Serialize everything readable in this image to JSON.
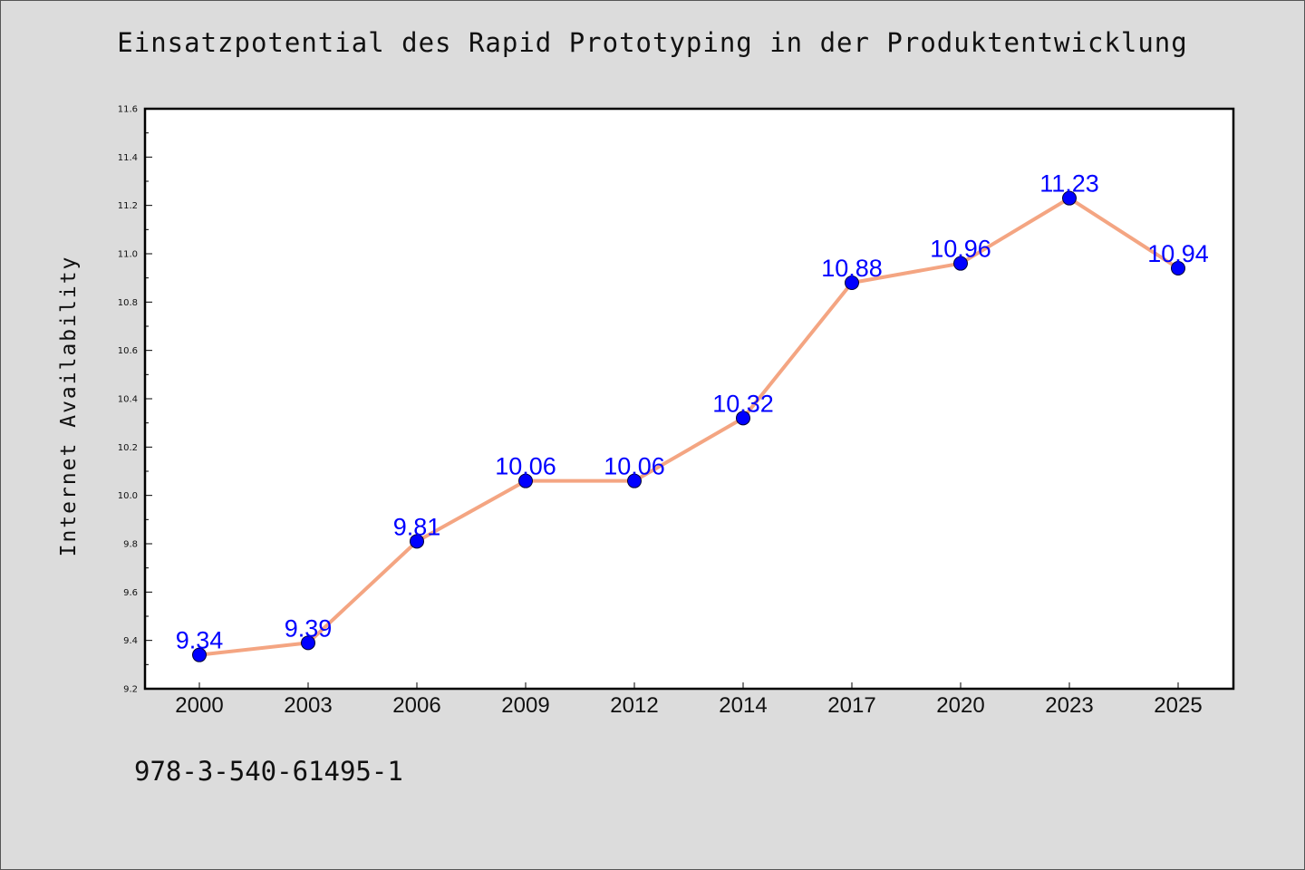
{
  "chart_data": {
    "type": "line",
    "title": "Einsatzpotential des Rapid Prototyping in der Produktentwicklung",
    "xlabel": "",
    "ylabel": "Internet Availability",
    "categories": [
      "2000",
      "2003",
      "2006",
      "2009",
      "2012",
      "2014",
      "2017",
      "2020",
      "2023",
      "2025"
    ],
    "series": [
      {
        "values": [
          9.34,
          9.39,
          9.81,
          10.06,
          10.06,
          10.32,
          10.88,
          10.96,
          11.23,
          10.94
        ],
        "labels": [
          "9.34",
          "9.39",
          "9.81",
          "10.06",
          "10.06",
          "10.32",
          "10.88",
          "10.96",
          "11.23",
          "10.94"
        ],
        "line_color": "#f4a582",
        "marker_color": "#0000ff"
      }
    ],
    "ylim": [
      9.2,
      11.6
    ],
    "yticks": [
      "9.2",
      "9.4",
      "9.6",
      "9.8",
      "10.0",
      "10.2",
      "10.4",
      "10.6",
      "10.8",
      "11.0",
      "11.2",
      "11.4",
      "11.6"
    ],
    "grid": false,
    "legend": "none"
  },
  "footnote": "978-3-540-61495-1"
}
